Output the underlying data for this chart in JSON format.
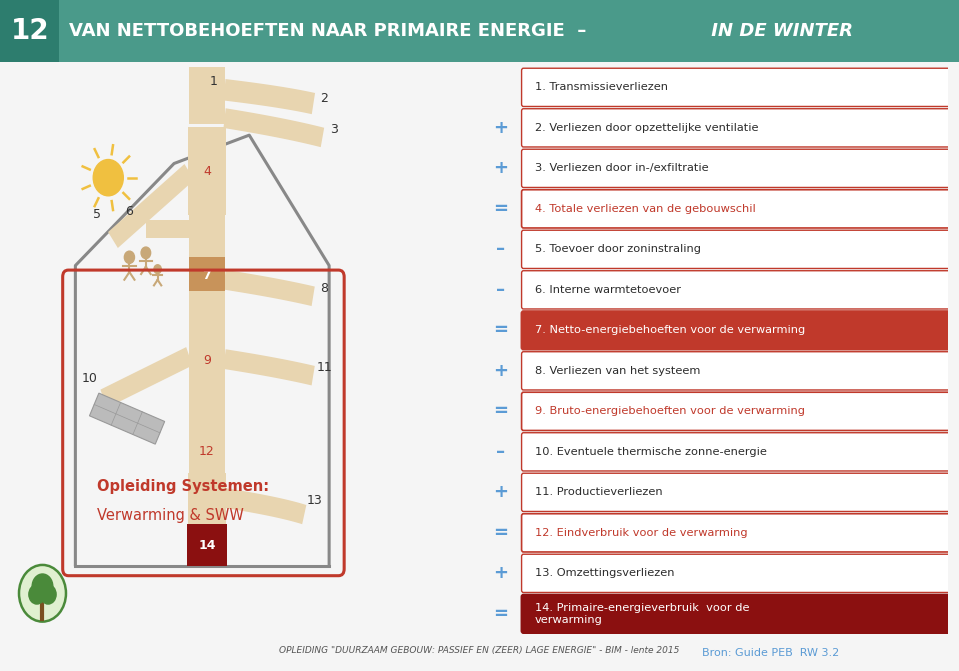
{
  "title_number": "12",
  "title_left": "VAN NETTOBEHOEFTEN NAAR PRIMAIRE ENERGIE  –",
  "title_right": " IN DE WINTER",
  "header_bg": "#4a9a8a",
  "header_number_bg": "#2d7d6e",
  "background": "#f5f5f5",
  "items": [
    {
      "text": "1. Transmissieverliezen",
      "operator": null,
      "style": "normal"
    },
    {
      "text": "2. Verliezen door opzettelijke ventilatie",
      "operator": "+",
      "style": "normal"
    },
    {
      "text": "3. Verliezen door in-/exfiltratie",
      "operator": "+",
      "style": "normal"
    },
    {
      "text": "4. Totale verliezen van de gebouwschil",
      "operator": "=",
      "style": "highlight_text"
    },
    {
      "text": "5. Toevoer door zoninstraling",
      "operator": "–",
      "style": "normal"
    },
    {
      "text": "6. Interne warmtetoevoer",
      "operator": "–",
      "style": "normal"
    },
    {
      "text": "7. Netto-energiebehoeften voor de verwarming",
      "operator": "=",
      "style": "highlight_fill"
    },
    {
      "text": "8. Verliezen van het systeem",
      "operator": "+",
      "style": "normal"
    },
    {
      "text": "9. Bruto-energiebehoeften voor de verwarming",
      "operator": "=",
      "style": "highlight_text"
    },
    {
      "text": "10. Eventuele thermische zonne-energie",
      "operator": "–",
      "style": "normal"
    },
    {
      "text": "11. Productieverliezen",
      "operator": "+",
      "style": "normal"
    },
    {
      "text": "12. Eindverbruik voor de verwarming",
      "operator": "=",
      "style": "highlight_text"
    },
    {
      "text": "13. Omzettingsverliezen",
      "operator": "+",
      "style": "normal"
    },
    {
      "text": "14. Primaire-energieverbruik  voor de\nverwarming",
      "operator": "=",
      "style": "dark_fill"
    }
  ],
  "box_border_color": "#c0392b",
  "box_highlight_text_color": "#c0392b",
  "box_normal_text_color": "#2c2c2c",
  "box_fill_color": "#c0392b",
  "box_dark_fill_color": "#8b1010",
  "box_fill_text_color": "#ffffff",
  "operator_color": "#5b9bd5",
  "bron_text": "Bron: Guide PEB  RW 3.2",
  "bron_color": "#5b9bd5",
  "footer_text": "OPLEIDING \"DUURZAAM GEBOUW: PASSIEF EN (ZEER) LAGE ENERGIE\" - BIM - lente 2015",
  "footer_color": "#555555",
  "body_color": "#e8d5b0",
  "segment7_color": "#c8935a",
  "dark_red": "#8b1010",
  "red": "#c0392b",
  "grey_house": "#888888",
  "sun_color": "#f0c040",
  "panel_color": "#bbbbbb",
  "system_box_color": "#c0392b",
  "label1": "Opleiding Systemen:",
  "label2": "Verwarming & SWW",
  "tree_circle_color": "#e0f0d0",
  "tree_border_color": "#4a8a3a"
}
